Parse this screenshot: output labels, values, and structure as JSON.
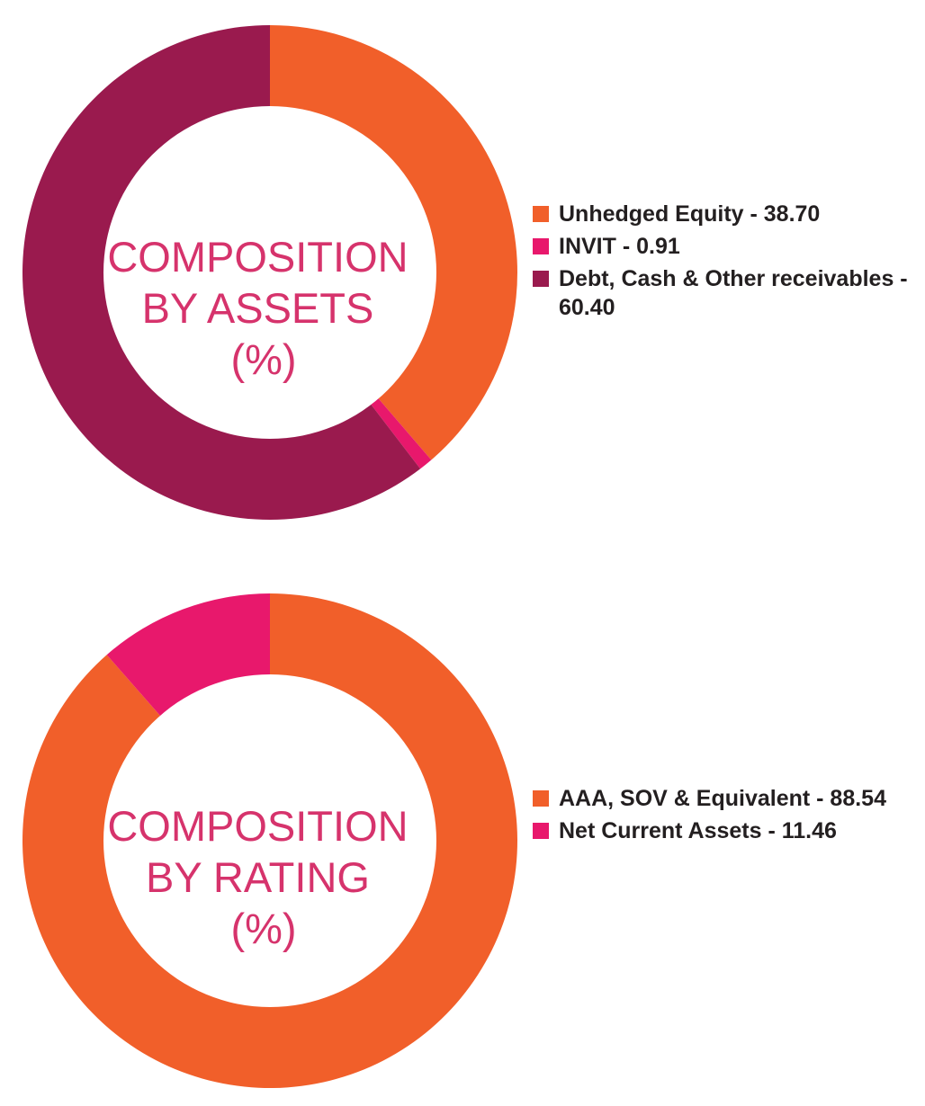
{
  "chart_data": [
    {
      "type": "pie",
      "center_title": [
        "COMPOSITION",
        "BY ASSETS",
        "(%)"
      ],
      "slices": [
        {
          "label": "Unhedged Equity - 38.70",
          "value": 38.7,
          "color": "#f15f2a"
        },
        {
          "label": "INVIT - 0.91",
          "value": 0.91,
          "color": "#e8186c"
        },
        {
          "label": "Debt, Cash & Other receivables - 60.40",
          "value": 60.4,
          "color": "#9a1a4e"
        }
      ],
      "legend_position": "right",
      "donut": true
    },
    {
      "type": "pie",
      "center_title": [
        "COMPOSITION",
        "BY RATING",
        "(%)"
      ],
      "slices": [
        {
          "label": "AAA, SOV & Equivalent - 88.54",
          "value": 88.54,
          "color": "#f15f2a"
        },
        {
          "label": "Net Current Assets - 11.46",
          "value": 11.46,
          "color": "#e8186c"
        }
      ],
      "legend_position": "right",
      "donut": true
    }
  ]
}
